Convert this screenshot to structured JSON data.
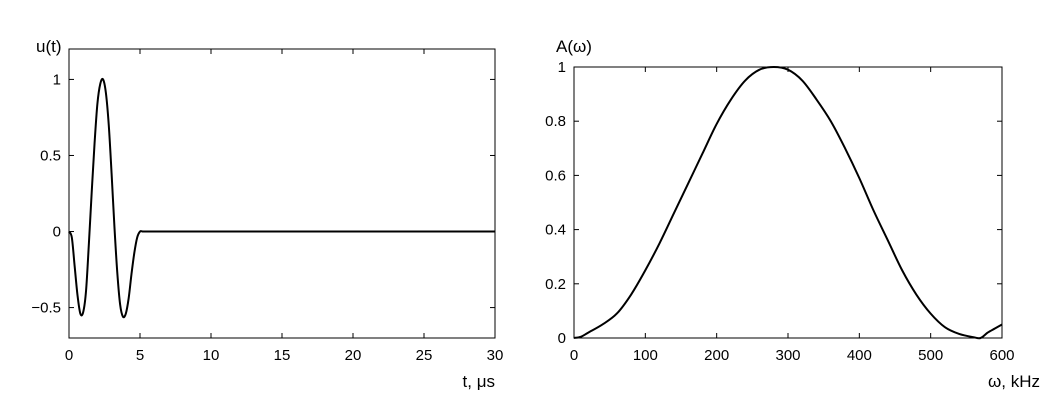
{
  "chart_data": [
    {
      "type": "line",
      "title": "",
      "ylabel": "u(t)",
      "xlabel": "t, μs",
      "xlim": [
        0,
        30
      ],
      "ylim": [
        -0.7,
        1.2
      ],
      "xticks": [
        0,
        5,
        10,
        15,
        20,
        25,
        30
      ],
      "xtick_labels": [
        "0",
        "5",
        "10",
        "15",
        "20",
        "25",
        "30"
      ],
      "yticks": [
        -0.5,
        0,
        0.5,
        1
      ],
      "ytick_labels": [
        "−0.5",
        "0",
        "0.5",
        "1"
      ],
      "grid": false,
      "series": [
        {
          "x": [
            0,
            0.2,
            0.4,
            0.6,
            0.8,
            1.0,
            1.2,
            1.4,
            1.6,
            1.8,
            2.0,
            2.2,
            2.4,
            2.6,
            2.8,
            3.0,
            3.2,
            3.4,
            3.6,
            3.8,
            4.0,
            4.2,
            4.4,
            4.6,
            4.8,
            5.0,
            5.2,
            5.4,
            6,
            10,
            15,
            20,
            25,
            30
          ],
          "y": [
            0,
            -0.04,
            -0.23,
            -0.42,
            -0.54,
            -0.53,
            -0.39,
            -0.08,
            0.26,
            0.58,
            0.84,
            0.97,
            1.0,
            0.91,
            0.7,
            0.38,
            0.03,
            -0.27,
            -0.48,
            -0.56,
            -0.54,
            -0.44,
            -0.28,
            -0.14,
            -0.04,
            0,
            0,
            0,
            0,
            0,
            0,
            0,
            0,
            0
          ]
        }
      ]
    },
    {
      "type": "line",
      "title": "",
      "ylabel": "A(ω)",
      "xlabel": "ω, kHz",
      "xlim": [
        0,
        600
      ],
      "ylim": [
        0,
        1
      ],
      "xticks": [
        0,
        100,
        200,
        300,
        400,
        500,
        600
      ],
      "xtick_labels": [
        "0",
        "100",
        "200",
        "300",
        "400",
        "500",
        "600"
      ],
      "yticks": [
        0,
        0.2,
        0.4,
        0.6,
        0.8,
        1
      ],
      "ytick_labels": [
        "0",
        "0.2",
        "0.4",
        "0.6",
        "0.8",
        "1"
      ],
      "grid": false,
      "series": [
        {
          "x": [
            0,
            10,
            20,
            40,
            60,
            80,
            100,
            120,
            140,
            160,
            180,
            200,
            220,
            240,
            260,
            280,
            300,
            320,
            340,
            360,
            380,
            400,
            420,
            440,
            460,
            480,
            500,
            520,
            540,
            560,
            570,
            580,
            590,
            600
          ],
          "y": [
            0,
            0.005,
            0.02,
            0.05,
            0.09,
            0.16,
            0.25,
            0.35,
            0.46,
            0.57,
            0.68,
            0.79,
            0.88,
            0.95,
            0.99,
            1.0,
            0.99,
            0.95,
            0.88,
            0.8,
            0.7,
            0.59,
            0.47,
            0.36,
            0.25,
            0.16,
            0.09,
            0.04,
            0.015,
            0.003,
            0,
            0.02,
            0.035,
            0.05
          ]
        }
      ]
    }
  ]
}
